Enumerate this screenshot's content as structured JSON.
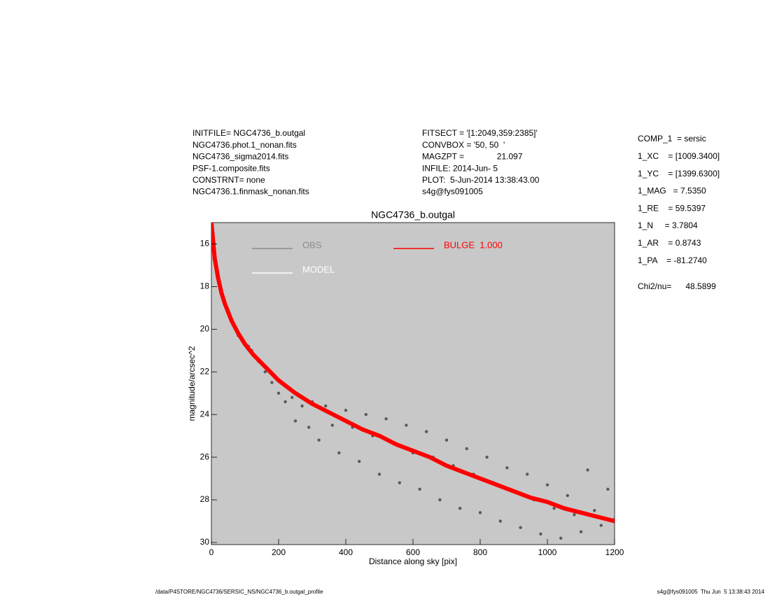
{
  "chart_data": {
    "type": "scatter",
    "title": "NGC4736_b.outgal",
    "xlabel": "Distance along sky [pix]",
    "ylabel": "magnitude/arcsec^2",
    "xlim": [
      0,
      1200
    ],
    "ylim": [
      30.1,
      15
    ],
    "xticks": [
      0,
      200,
      400,
      600,
      800,
      1000,
      1200
    ],
    "yticks": [
      16,
      18,
      20,
      22,
      24,
      26,
      28,
      30
    ],
    "plot_background": "#c8c8c8",
    "series": [
      {
        "name": "OBS",
        "color": "#5a5a5a",
        "legend_color": "#8c8c8c",
        "x": [
          3,
          8,
          14,
          20,
          30,
          40,
          50,
          60,
          70,
          80,
          90,
          100,
          110,
          120,
          140,
          160,
          180,
          200,
          220,
          240,
          250,
          270,
          290,
          300,
          320,
          340,
          360,
          380,
          400,
          420,
          440,
          460,
          480,
          500,
          520,
          540,
          560,
          580,
          600,
          620,
          640,
          660,
          680,
          700,
          720,
          740,
          760,
          780,
          800,
          820,
          840,
          860,
          880,
          900,
          920,
          940,
          960,
          980,
          1000,
          1020,
          1040,
          1060,
          1080,
          1100,
          1120,
          1140,
          1160,
          1180,
          1200
        ],
        "values": [
          15.2,
          16.0,
          16.9,
          17.6,
          18.3,
          18.8,
          19.2,
          19.6,
          19.9,
          20.3,
          20.5,
          20.7,
          20.8,
          21.0,
          21.5,
          22.0,
          22.5,
          23.0,
          23.4,
          23.2,
          24.3,
          23.6,
          24.6,
          23.4,
          25.2,
          23.6,
          24.5,
          25.8,
          23.8,
          24.6,
          26.2,
          24.0,
          25.0,
          26.8,
          24.2,
          25.3,
          27.2,
          24.5,
          25.8,
          27.5,
          24.8,
          26.0,
          28.0,
          25.2,
          26.4,
          28.4,
          25.6,
          26.8,
          28.6,
          26.0,
          27.2,
          29.0,
          26.5,
          27.6,
          29.3,
          26.8,
          28.0,
          29.6,
          27.3,
          28.4,
          29.8,
          27.8,
          28.7,
          29.5,
          26.6,
          28.5,
          29.2,
          27.5,
          28.9
        ]
      },
      {
        "name": "MODEL",
        "color": "#ffffff",
        "x": [],
        "values": []
      },
      {
        "name": "BULGE  1.000",
        "color": "#ff0000",
        "x": [
          0,
          10,
          20,
          30,
          40,
          50,
          60,
          80,
          100,
          125,
          150,
          175,
          200,
          250,
          300,
          350,
          400,
          450,
          500,
          550,
          600,
          650,
          700,
          750,
          800,
          850,
          900,
          950,
          1000,
          1050,
          1100,
          1150,
          1200
        ],
        "values": [
          15.0,
          16.7,
          17.6,
          18.3,
          18.8,
          19.2,
          19.6,
          20.2,
          20.7,
          21.2,
          21.6,
          22.0,
          22.4,
          23.0,
          23.5,
          23.9,
          24.3,
          24.7,
          25.0,
          25.4,
          25.7,
          26.0,
          26.4,
          26.7,
          27.0,
          27.3,
          27.6,
          27.9,
          28.1,
          28.4,
          28.6,
          28.8,
          29.0
        ]
      }
    ],
    "info_left": [
      "INITFILE= NGC4736_b.outgal",
      "NGC4736.phot.1_nonan.fits",
      "NGC4736_sigma2014.fits",
      "PSF-1.composite.fits",
      "CONSTRNT= none",
      "NGC4736.1.finmask_nonan.fits"
    ],
    "info_middle": [
      "FITSECT = '[1:2049,359:2385]'",
      "CONVBOX = '50, 50  '",
      "MAGZPT =              21.097",
      "INFILE: 2014-Jun- 5",
      "PLOT:  5-Jun-2014 13:38:43.00",
      "s4g@fys091005"
    ],
    "info_right": [
      "COMP_1  = sersic",
      "1_XC    = [1009.3400]",
      "1_YC    = [1399.6300]",
      "1_MAG   = 7.5350",
      "1_RE    = 59.5397",
      "1_N     = 3.7804",
      "1_AR    = 0.8743",
      "1_PA    = -81.2740"
    ],
    "chi2": "Chi2/nu=      48.5899",
    "footer_left": "/data/P4STORE/NGC4736/SERSIC_NS/NGC4736_b.outgal_profile",
    "footer_right": "s4g@fys091005  Thu Jun  5 13:38:43 2014"
  }
}
